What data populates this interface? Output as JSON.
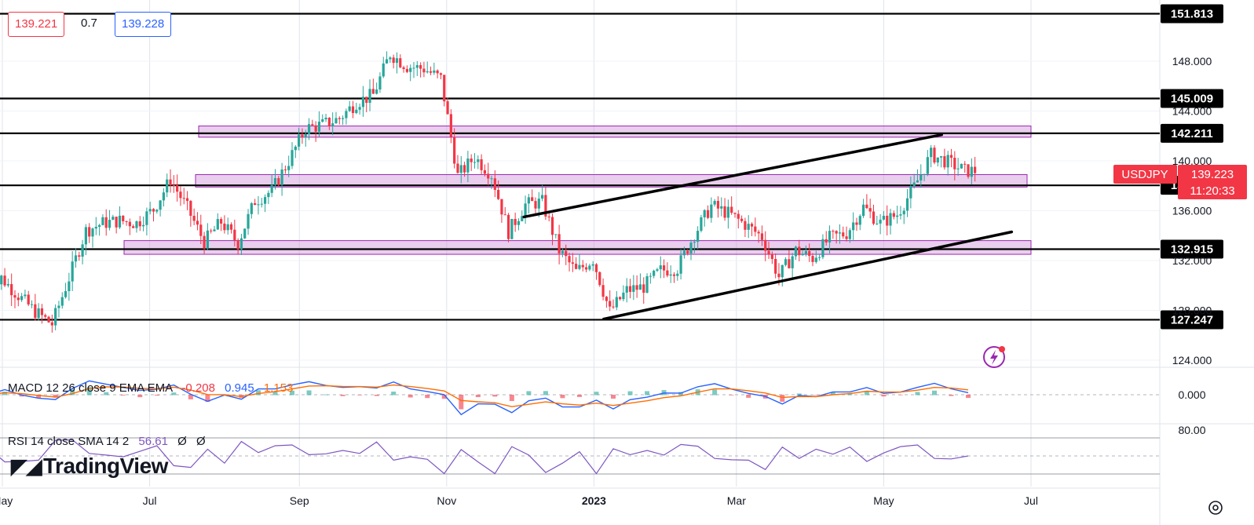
{
  "quote": {
    "bid": "139.221",
    "spread": "0.7",
    "ask": "139.228"
  },
  "branding": {
    "logo_text": "TradingView"
  },
  "colors": {
    "up": "#26a69a",
    "down": "#f23645",
    "zone": "#ce93d8",
    "macd": "#2962ff",
    "signal": "#ff6d00",
    "rsi": "#7e57c2"
  },
  "chart_data": {
    "type": "candlestick",
    "symbol": "USDJPY",
    "last_price": "139.223",
    "countdown": "11:20:33",
    "x_ticks": [
      "May",
      "Jul",
      "Sep",
      "Nov",
      "2023",
      "Mar",
      "May",
      "Jul"
    ],
    "y_ticks": [
      "148.000",
      "144.000",
      "140.000",
      "136.000",
      "132.000",
      "128.000",
      "124.000"
    ],
    "ylim": [
      123.5,
      154.5
    ],
    "horizontal_levels": [
      "151.813",
      "145.009",
      "142.211",
      "138.036",
      "132.915",
      "127.247"
    ],
    "zones": [
      [
        141.9,
        142.8
      ],
      [
        137.9,
        138.9
      ],
      [
        132.5,
        133.6
      ]
    ],
    "channel": {
      "upper": [
        [
          "2022-12-03",
          135.5
        ],
        [
          "2023-05-25",
          142.1
        ]
      ],
      "lower": [
        [
          "2023-01-05",
          127.3
        ],
        [
          "2023-06-23",
          134.3
        ]
      ]
    },
    "series": [
      {
        "name": "USDJPY",
        "points": [
          [
            "2022-04-25",
            128.6
          ],
          [
            "2022-05-02",
            130.6
          ],
          [
            "2022-05-09",
            129.2
          ],
          [
            "2022-05-16",
            127.9
          ],
          [
            "2022-05-23",
            126.9
          ],
          [
            "2022-05-30",
            130.6
          ],
          [
            "2022-06-06",
            134.4
          ],
          [
            "2022-06-13",
            135.0
          ],
          [
            "2022-06-20",
            135.2
          ],
          [
            "2022-06-27",
            135.0
          ],
          [
            "2022-07-04",
            136.1
          ],
          [
            "2022-07-11",
            138.5
          ],
          [
            "2022-07-18",
            136.2
          ],
          [
            "2022-07-25",
            133.5
          ],
          [
            "2022-08-01",
            135.1
          ],
          [
            "2022-08-08",
            133.4
          ],
          [
            "2022-08-15",
            136.8
          ],
          [
            "2022-08-22",
            137.6
          ],
          [
            "2022-08-29",
            140.0
          ],
          [
            "2022-09-05",
            142.6
          ],
          [
            "2022-09-12",
            142.9
          ],
          [
            "2022-09-19",
            143.4
          ],
          [
            "2022-09-26",
            144.7
          ],
          [
            "2022-10-03",
            145.3
          ],
          [
            "2022-10-10",
            148.6
          ],
          [
            "2022-10-17",
            147.6
          ],
          [
            "2022-10-24",
            147.4
          ],
          [
            "2022-10-31",
            146.6
          ],
          [
            "2022-11-07",
            138.8
          ],
          [
            "2022-11-14",
            140.3
          ],
          [
            "2022-11-21",
            138.9
          ],
          [
            "2022-11-28",
            134.3
          ],
          [
            "2022-12-05",
            136.5
          ],
          [
            "2022-12-12",
            136.7
          ],
          [
            "2022-12-19",
            132.8
          ],
          [
            "2022-12-26",
            131.1
          ],
          [
            "2023-01-02",
            132.1
          ],
          [
            "2023-01-09",
            127.9
          ],
          [
            "2023-01-16",
            129.6
          ],
          [
            "2023-01-23",
            129.9
          ],
          [
            "2023-01-30",
            131.2
          ],
          [
            "2023-02-06",
            131.4
          ],
          [
            "2023-02-13",
            134.1
          ],
          [
            "2023-02-20",
            136.4
          ],
          [
            "2023-02-27",
            135.8
          ],
          [
            "2023-03-06",
            134.9
          ],
          [
            "2023-03-13",
            133.9
          ],
          [
            "2023-03-20",
            130.7
          ],
          [
            "2023-03-27",
            132.8
          ],
          [
            "2023-04-03",
            132.2
          ],
          [
            "2023-04-10",
            133.8
          ],
          [
            "2023-04-17",
            134.2
          ],
          [
            "2023-04-24",
            136.3
          ],
          [
            "2023-05-01",
            135.0
          ],
          [
            "2023-05-08",
            135.7
          ],
          [
            "2023-05-15",
            137.9
          ],
          [
            "2023-05-22",
            140.5
          ],
          [
            "2023-05-29",
            139.9
          ],
          [
            "2023-06-05",
            139.2
          ],
          [
            "2023-06-12",
            139.2
          ]
        ]
      }
    ]
  },
  "macd": {
    "label": "MACD 12 26 close 9 EMA EMA",
    "hist": "-0.208",
    "macd": "0.945",
    "signal": "1.153",
    "zero_tick": "0.000"
  },
  "rsi": {
    "label": "RSI 14 close SMA 14 2",
    "value": "56.61",
    "extra1": "Ø",
    "extra2": "Ø",
    "top_tick": "80.00"
  }
}
